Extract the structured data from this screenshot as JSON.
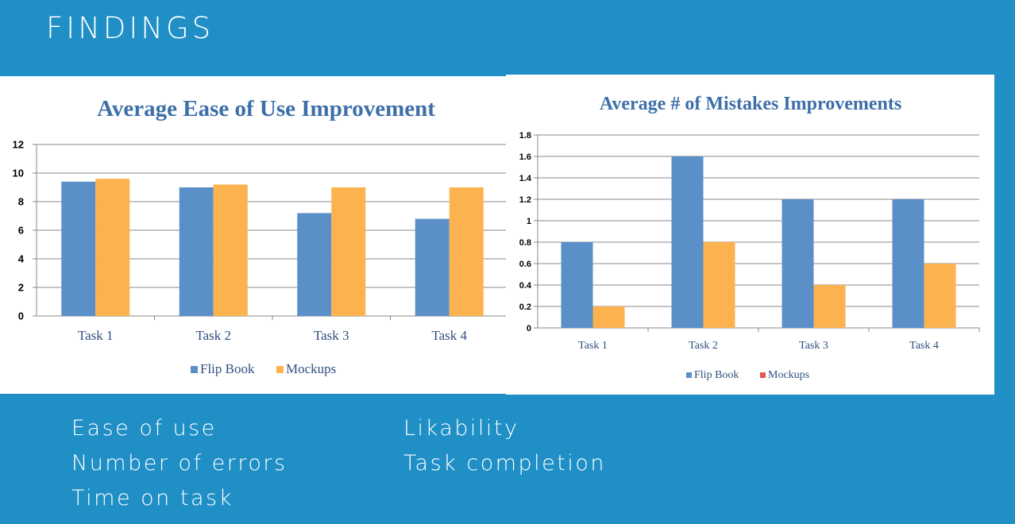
{
  "slide": {
    "title": "FINDINGS",
    "bullets_left": [
      "Ease of use",
      "Number of errors",
      "Time on task"
    ],
    "bullets_right": [
      "Likability",
      "Task completion"
    ]
  },
  "colors": {
    "background": "#1f8fc6",
    "flip_book": "#5b8fc7",
    "mockups": "#fbb24f",
    "mockups_legend_marker_right": "#e8544e",
    "title_text": "#3d6fa8"
  },
  "chart_data": [
    {
      "type": "bar",
      "title": "Average Ease of Use Improvement",
      "categories": [
        "Task 1",
        "Task 2",
        "Task 3",
        "Task 4"
      ],
      "series": [
        {
          "name": "Flip Book",
          "values": [
            9.4,
            9.0,
            7.2,
            6.8
          ]
        },
        {
          "name": "Mockups",
          "values": [
            9.6,
            9.2,
            9.0,
            9.0
          ]
        }
      ],
      "ylim": [
        0,
        12
      ],
      "yticks": [
        "0",
        "2",
        "4",
        "6",
        "8",
        "10",
        "12"
      ],
      "grid": true,
      "legend": "bottom"
    },
    {
      "type": "bar",
      "title": "Average # of Mistakes Improvements",
      "categories": [
        "Task 1",
        "Task 2",
        "Task 3",
        "Task 4"
      ],
      "series": [
        {
          "name": "Flip Book",
          "values": [
            0.8,
            1.6,
            1.2,
            1.2
          ]
        },
        {
          "name": "Mockups",
          "values": [
            0.2,
            0.8,
            0.4,
            0.6
          ]
        }
      ],
      "ylim": [
        0,
        1.8
      ],
      "yticks": [
        "0",
        "0.2",
        "0.4",
        "0.6",
        "0.8",
        "1",
        "1.2",
        "1.4",
        "1.6",
        "1.8"
      ],
      "grid": true,
      "legend": "bottom"
    }
  ]
}
